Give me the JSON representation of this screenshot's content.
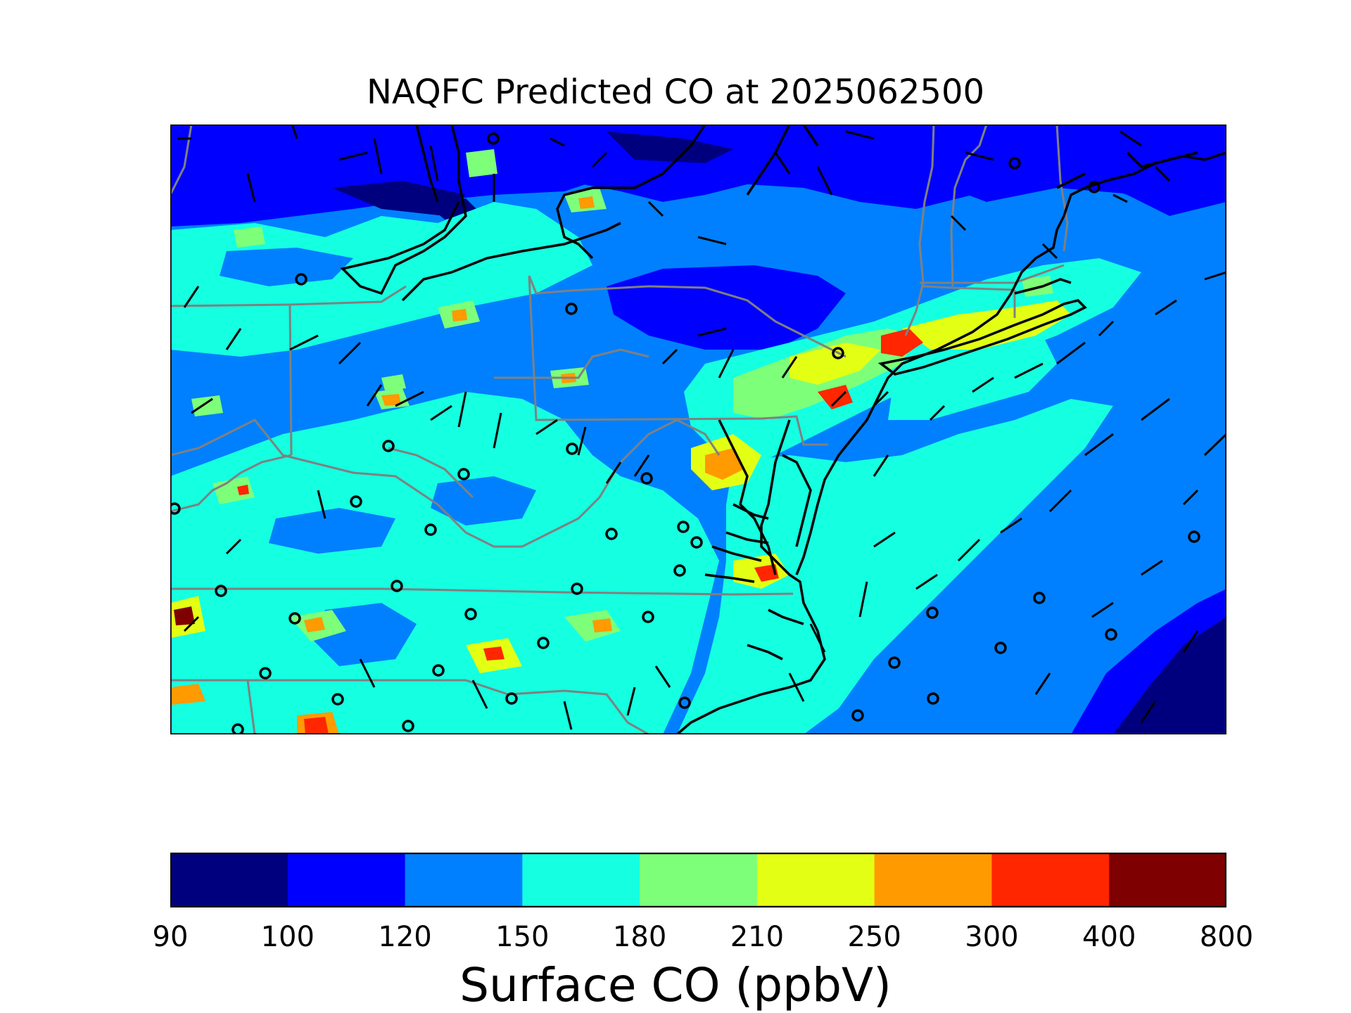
{
  "title": "NAQFC Predicted CO at 2025062500",
  "map": {
    "field": "Surface CO (ppbV)",
    "overlays": [
      "coastline",
      "state-borders",
      "wind-barbs",
      "calm-wind-circles"
    ],
    "colors": {
      "coastline": "#000000",
      "state_border": "#808080",
      "barb": "#000000"
    }
  },
  "colorbar": {
    "label": "Surface CO (ppbV)",
    "ticks": [
      "90",
      "100",
      "120",
      "150",
      "180",
      "210",
      "250",
      "300",
      "400",
      "800"
    ],
    "colors": [
      "#00007f",
      "#0000fe",
      "#0080ff",
      "#15ffe1",
      "#7dff7a",
      "#e3ff14",
      "#ff9a00",
      "#ff2600",
      "#7f0000"
    ]
  }
}
